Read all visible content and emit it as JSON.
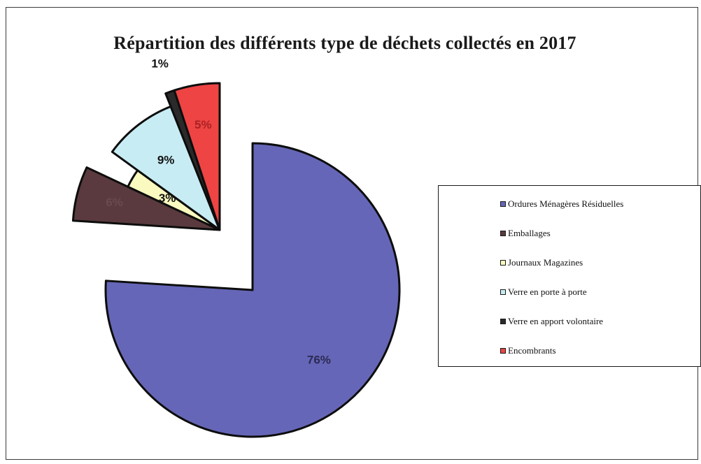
{
  "chart_data": {
    "type": "pie",
    "title": "Répartition des différents type de déchets collectés en 2017",
    "categories": [
      "Ordures Ménagères Résiduelles",
      "Emballages",
      "Journaux Magazines",
      "Verre en porte à porte",
      "Verre en apport volontaire",
      "Encombrants"
    ],
    "values": [
      76,
      6,
      3,
      9,
      1,
      5
    ],
    "data_labels": [
      "76%",
      "6%",
      "3%",
      "9%",
      "1%",
      "5%"
    ],
    "colors": [
      "#6666b8",
      "#5a3a3e",
      "#fafac0",
      "#c8ecf4",
      "#2a2a2a",
      "#ee4444"
    ],
    "exploded": true,
    "legend": "right"
  }
}
